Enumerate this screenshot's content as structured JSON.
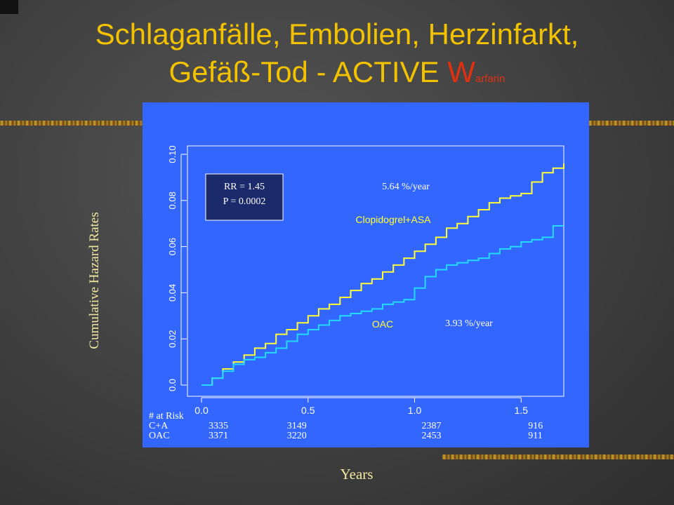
{
  "slide": {
    "title_line1": "Schlaganfälle, Embolien, Herzinfarkt,",
    "title_line2_main": "Gefäß-Tod - ACTIVE ",
    "title_w": "W",
    "title_sub": "arfarin"
  },
  "chart_data": {
    "type": "line",
    "xlabel": "Years",
    "ylabel": "Cumulative Hazard Rates",
    "xlim": [
      0.0,
      1.7
    ],
    "ylim": [
      0.0,
      0.1
    ],
    "x_ticks": [
      "0.0",
      "0.5",
      "1.0",
      "1.5"
    ],
    "y_ticks": [
      "0.0",
      "0.02",
      "0.04",
      "0.06",
      "0.08",
      "0.10"
    ],
    "series": [
      {
        "name": "Clopidogrel+ASA",
        "color": "#ffff33",
        "rate_label": "5.64 %/year",
        "points": [
          [
            0.0,
            0.0
          ],
          [
            0.05,
            0.003
          ],
          [
            0.1,
            0.007
          ],
          [
            0.15,
            0.01
          ],
          [
            0.2,
            0.013
          ],
          [
            0.25,
            0.016
          ],
          [
            0.3,
            0.018
          ],
          [
            0.35,
            0.022
          ],
          [
            0.4,
            0.024
          ],
          [
            0.45,
            0.027
          ],
          [
            0.5,
            0.03
          ],
          [
            0.55,
            0.033
          ],
          [
            0.6,
            0.035
          ],
          [
            0.65,
            0.038
          ],
          [
            0.7,
            0.041
          ],
          [
            0.75,
            0.044
          ],
          [
            0.8,
            0.046
          ],
          [
            0.85,
            0.049
          ],
          [
            0.9,
            0.052
          ],
          [
            0.95,
            0.055
          ],
          [
            1.0,
            0.058
          ],
          [
            1.05,
            0.061
          ],
          [
            1.1,
            0.064
          ],
          [
            1.15,
            0.068
          ],
          [
            1.2,
            0.07
          ],
          [
            1.25,
            0.073
          ],
          [
            1.3,
            0.076
          ],
          [
            1.35,
            0.079
          ],
          [
            1.4,
            0.081
          ],
          [
            1.45,
            0.082
          ],
          [
            1.5,
            0.083
          ],
          [
            1.55,
            0.088
          ],
          [
            1.6,
            0.092
          ],
          [
            1.65,
            0.094
          ],
          [
            1.7,
            0.096
          ]
        ]
      },
      {
        "name": "OAC",
        "color": "#22ddff",
        "rate_label": "3.93 %/year",
        "points": [
          [
            0.0,
            0.0
          ],
          [
            0.05,
            0.003
          ],
          [
            0.1,
            0.006
          ],
          [
            0.15,
            0.009
          ],
          [
            0.2,
            0.011
          ],
          [
            0.25,
            0.012
          ],
          [
            0.3,
            0.014
          ],
          [
            0.35,
            0.016
          ],
          [
            0.4,
            0.019
          ],
          [
            0.45,
            0.022
          ],
          [
            0.5,
            0.024
          ],
          [
            0.55,
            0.026
          ],
          [
            0.6,
            0.028
          ],
          [
            0.65,
            0.03
          ],
          [
            0.7,
            0.031
          ],
          [
            0.75,
            0.032
          ],
          [
            0.8,
            0.033
          ],
          [
            0.85,
            0.035
          ],
          [
            0.9,
            0.036
          ],
          [
            0.95,
            0.037
          ],
          [
            1.0,
            0.042
          ],
          [
            1.05,
            0.047
          ],
          [
            1.1,
            0.05
          ],
          [
            1.15,
            0.052
          ],
          [
            1.2,
            0.053
          ],
          [
            1.25,
            0.054
          ],
          [
            1.3,
            0.055
          ],
          [
            1.35,
            0.057
          ],
          [
            1.4,
            0.059
          ],
          [
            1.45,
            0.06
          ],
          [
            1.5,
            0.062
          ],
          [
            1.55,
            0.063
          ],
          [
            1.6,
            0.064
          ],
          [
            1.65,
            0.069
          ],
          [
            1.7,
            0.069
          ]
        ]
      }
    ],
    "annotation": {
      "rr": "RR = 1.45",
      "p": "P = 0.0002"
    },
    "risk_table": {
      "header": "# at Risk",
      "rows": [
        {
          "label": "C+A",
          "values": [
            "3335",
            "3149",
            "2387",
            "916"
          ]
        },
        {
          "label": "OAC",
          "values": [
            "3371",
            "3220",
            "2453",
            "911"
          ]
        }
      ]
    }
  }
}
